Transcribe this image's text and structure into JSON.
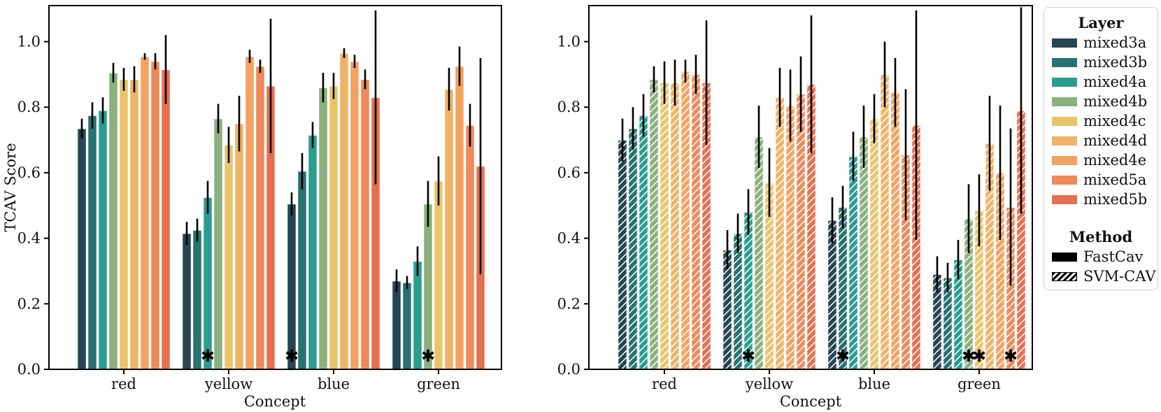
{
  "figure": {
    "background": "#ffffff",
    "text_color": "#111111",
    "spine_color": "#000000",
    "significance_symbol": "✱"
  },
  "legend": {
    "layer_title": "Layer",
    "method_title": "Method",
    "layers": [
      {
        "label": "mixed3a",
        "color": "#264653"
      },
      {
        "label": "mixed3b",
        "color": "#287271"
      },
      {
        "label": "mixed4a",
        "color": "#2a9d8f"
      },
      {
        "label": "mixed4b",
        "color": "#8ab17d"
      },
      {
        "label": "mixed4c",
        "color": "#e9c46a"
      },
      {
        "label": "mixed4d",
        "color": "#efb366"
      },
      {
        "label": "mixed4e",
        "color": "#f4a261"
      },
      {
        "label": "mixed5a",
        "color": "#ee8959"
      },
      {
        "label": "mixed5b",
        "color": "#e76f51"
      }
    ],
    "methods": [
      {
        "label": "FastCav",
        "style": "solid",
        "color": "#000000"
      },
      {
        "label": "SVM-CAV",
        "style": "hatched",
        "color": "#000000"
      }
    ]
  },
  "chart_data": [
    {
      "type": "bar",
      "title": "",
      "method": "FastCav",
      "hatched": false,
      "xlabel": "Concept",
      "ylabel": "TCAV Score",
      "categories": [
        "red",
        "yellow",
        "blue",
        "green"
      ],
      "yticks": [
        0.0,
        0.2,
        0.4,
        0.6,
        0.8,
        1.0
      ],
      "ylim": [
        0,
        1.11
      ],
      "grid": false,
      "legend_position": "outside-right",
      "series": [
        {
          "name": "mixed3a",
          "color": "#264653",
          "values": [
            0.735,
            0.415,
            0.505,
            0.27
          ],
          "errors": [
            0.03,
            0.035,
            0.035,
            0.035
          ]
        },
        {
          "name": "mixed3b",
          "color": "#287271",
          "values": [
            0.775,
            0.425,
            0.605,
            0.265
          ],
          "errors": [
            0.04,
            0.035,
            0.055,
            0.02
          ]
        },
        {
          "name": "mixed4a",
          "color": "#2a9d8f",
          "values": [
            0.79,
            0.525,
            0.715,
            0.33
          ],
          "errors": [
            0.04,
            0.05,
            0.04,
            0.045
          ]
        },
        {
          "name": "mixed4b",
          "color": "#8ab17d",
          "values": [
            0.905,
            0.765,
            0.86,
            0.505
          ],
          "errors": [
            0.03,
            0.045,
            0.045,
            0.07
          ]
        },
        {
          "name": "mixed4c",
          "color": "#e9c46a",
          "values": [
            0.885,
            0.685,
            0.865,
            0.575
          ],
          "errors": [
            0.035,
            0.055,
            0.04,
            0.075
          ]
        },
        {
          "name": "mixed4d",
          "color": "#efb366",
          "values": [
            0.885,
            0.75,
            0.965,
            0.855
          ],
          "errors": [
            0.04,
            0.085,
            0.015,
            0.065
          ]
        },
        {
          "name": "mixed4e",
          "color": "#f4a261",
          "values": [
            0.955,
            0.955,
            0.94,
            0.925
          ],
          "errors": [
            0.01,
            0.02,
            0.02,
            0.06
          ]
        },
        {
          "name": "mixed5a",
          "color": "#ee8959",
          "values": [
            0.94,
            0.925,
            0.885,
            0.745
          ],
          "errors": [
            0.025,
            0.02,
            0.03,
            0.065
          ]
        },
        {
          "name": "mixed5b",
          "color": "#e76f51",
          "values": [
            0.915,
            0.865,
            0.83,
            0.62
          ],
          "errors": [
            0.105,
            0.205,
            0.265,
            0.33
          ]
        }
      ],
      "significance_marks": [
        {
          "category": "yellow",
          "layer": "mixed4a"
        },
        {
          "category": "blue",
          "layer": "mixed3a"
        },
        {
          "category": "green",
          "layer": "mixed4b"
        }
      ]
    },
    {
      "type": "bar",
      "title": "",
      "method": "SVM-CAV",
      "hatched": true,
      "xlabel": "Concept",
      "ylabel": "",
      "categories": [
        "red",
        "yellow",
        "blue",
        "green"
      ],
      "yticks": [
        0.0,
        0.2,
        0.4,
        0.6,
        0.8,
        1.0
      ],
      "ylim": [
        0,
        1.11
      ],
      "grid": false,
      "legend_position": "outside-right",
      "series": [
        {
          "name": "mixed3a",
          "color": "#264653",
          "values": [
            0.7,
            0.365,
            0.455,
            0.29
          ],
          "errors": [
            0.065,
            0.06,
            0.07,
            0.055
          ]
        },
        {
          "name": "mixed3b",
          "color": "#287271",
          "values": [
            0.735,
            0.415,
            0.495,
            0.28
          ],
          "errors": [
            0.065,
            0.06,
            0.065,
            0.045
          ]
        },
        {
          "name": "mixed4a",
          "color": "#2a9d8f",
          "values": [
            0.775,
            0.48,
            0.65,
            0.335
          ],
          "errors": [
            0.065,
            0.07,
            0.075,
            0.06
          ]
        },
        {
          "name": "mixed4b",
          "color": "#8ab17d",
          "values": [
            0.885,
            0.71,
            0.71,
            0.46
          ],
          "errors": [
            0.04,
            0.095,
            0.095,
            0.105
          ]
        },
        {
          "name": "mixed4c",
          "color": "#e9c46a",
          "values": [
            0.875,
            0.57,
            0.765,
            0.485
          ],
          "errors": [
            0.065,
            0.105,
            0.075,
            0.11
          ]
        },
        {
          "name": "mixed4d",
          "color": "#efb366",
          "values": [
            0.875,
            0.83,
            0.9,
            0.69
          ],
          "errors": [
            0.07,
            0.09,
            0.1,
            0.145
          ]
        },
        {
          "name": "mixed4e",
          "color": "#f4a261",
          "values": [
            0.91,
            0.805,
            0.845,
            0.6
          ],
          "errors": [
            0.035,
            0.11,
            0.105,
            0.205
          ]
        },
        {
          "name": "mixed5a",
          "color": "#ee8959",
          "values": [
            0.9,
            0.84,
            0.655,
            0.495
          ],
          "errors": [
            0.06,
            0.115,
            0.2,
            0.24
          ]
        },
        {
          "name": "mixed5b",
          "color": "#e76f51",
          "values": [
            0.875,
            0.87,
            0.745,
            0.79
          ],
          "errors": [
            0.19,
            0.21,
            0.35,
            0.315
          ]
        }
      ],
      "significance_marks": [
        {
          "category": "yellow",
          "layer": "mixed4a"
        },
        {
          "category": "blue",
          "layer": "mixed3b"
        },
        {
          "category": "green",
          "layer": "mixed4b"
        },
        {
          "category": "green",
          "layer": "mixed4c"
        },
        {
          "category": "green",
          "layer": "mixed5a"
        }
      ]
    }
  ]
}
